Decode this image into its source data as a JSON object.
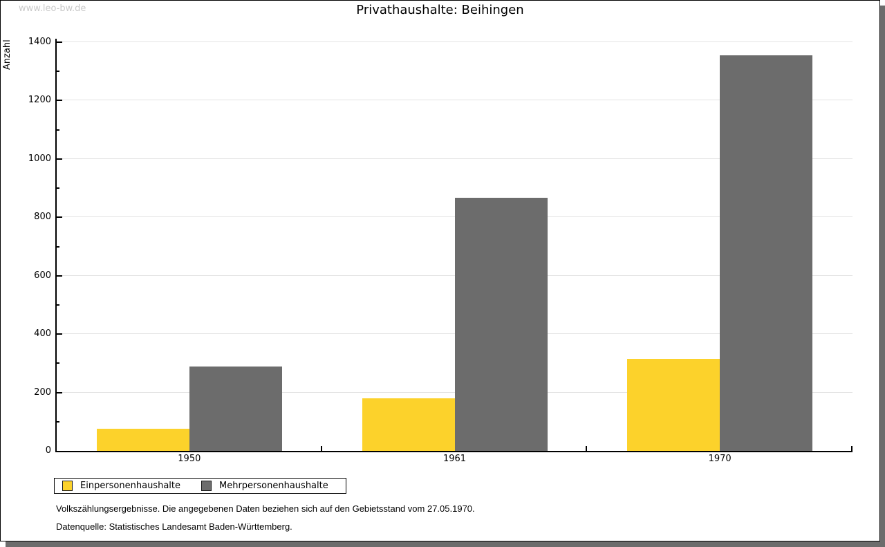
{
  "page": {
    "watermark": "www.leo-bw.de"
  },
  "chart_data": {
    "type": "bar",
    "title": "Privathaushalte: Beihingen",
    "xlabel": "",
    "ylabel": "Anzahl",
    "categories": [
      "1950",
      "1961",
      "1970"
    ],
    "series": [
      {
        "name": "Einpersonenhaushalte",
        "color": "#fcd22b",
        "values": [
          76,
          181,
          316
        ]
      },
      {
        "name": "Mehrpersonenhaushalte",
        "color": "#6c6c6c",
        "values": [
          288,
          866,
          1356
        ]
      }
    ],
    "ylim": [
      0,
      1400
    ],
    "y_major_step": 200,
    "y_minor_step": 100,
    "grid": true,
    "gridline_color": "#e3e3e3",
    "legend_position": "bottom-left"
  },
  "footer": {
    "line1": "Volkszählungsergebnisse. Die angegebenen Daten beziehen sich auf den Gebietsstand vom 27.05.1970.",
    "line2": "Datenquelle: Statistisches Landesamt Baden-Württemberg."
  }
}
